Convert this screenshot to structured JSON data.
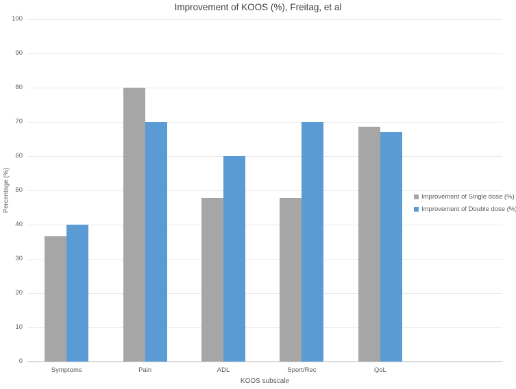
{
  "chart_data": {
    "type": "bar",
    "title": "Improvement of KOOS (%), Freitag, et al",
    "xlabel": "KOOS subscale",
    "ylabel": "Percentage (%)",
    "categories": [
      "Symptoms",
      "Pain",
      "ADL",
      "Sport/Rec",
      "QoL"
    ],
    "series": [
      {
        "name": "Improvement of Single dose (%)",
        "color": "#A6A6A6",
        "values": [
          36.7,
          80,
          47.8,
          47.8,
          68.7
        ]
      },
      {
        "name": "Improvement of Double dose (%)",
        "color": "#5B9BD5",
        "values": [
          40,
          70,
          60,
          70,
          67
        ]
      }
    ],
    "ylim": [
      0,
      100
    ],
    "yticks": [
      0,
      10,
      20,
      30,
      40,
      50,
      60,
      70,
      80,
      90,
      100
    ],
    "grid": true,
    "legend_position": "right-overlay"
  },
  "colors": {
    "background": "#FFFFFF",
    "title_text": "#404040",
    "axis_text": "#595959",
    "gridline": "#E9E9E9",
    "axis_line": "#D9D9D9"
  }
}
